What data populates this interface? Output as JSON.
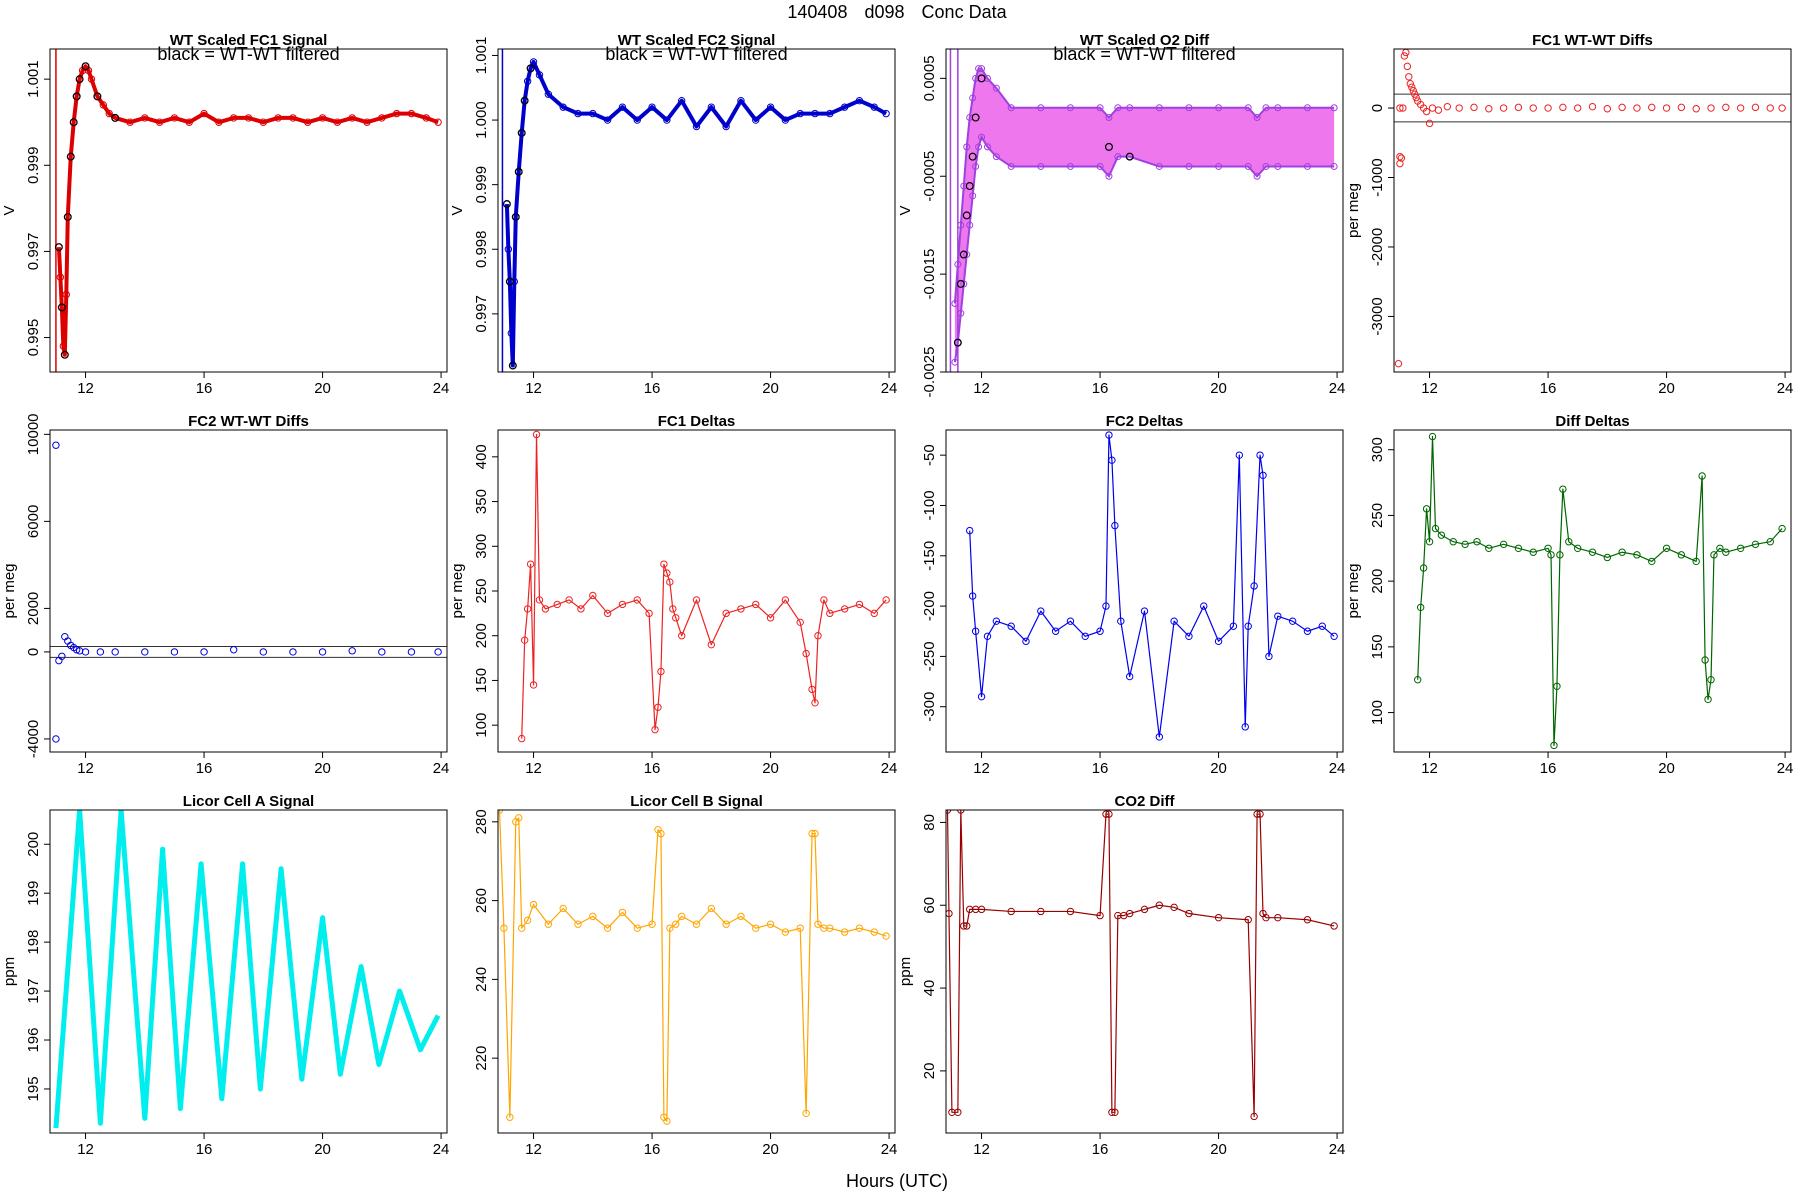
{
  "figure": {
    "title_parts": [
      "140408",
      "d098",
      "Conc Data"
    ],
    "xlabel": "Hours (UTC)"
  },
  "chart_data": [
    {
      "type": "scatter",
      "title": "WT Scaled FC1 Signal",
      "annotation": "black = WT-WT filtered",
      "ylabel": "V",
      "color": "#dd0000",
      "highlight_color": "#000000",
      "band": false,
      "xlim": [
        10.8,
        24.2
      ],
      "ylim": [
        0.9942,
        1.0017
      ],
      "xticks": [
        12,
        16,
        20,
        24
      ],
      "yticks": [
        0.995,
        0.997,
        0.999,
        1.001
      ],
      "ytick_labels": [
        "0.995",
        "0.997",
        "0.999",
        "1.001"
      ],
      "vlines": [
        11.0
      ],
      "x": [
        11.1,
        11.15,
        11.2,
        11.25,
        11.3,
        11.35,
        11.4,
        11.5,
        11.6,
        11.7,
        11.8,
        11.9,
        12.0,
        12.1,
        12.2,
        12.4,
        12.6,
        12.8,
        13.0,
        13.5,
        14.0,
        14.5,
        15.0,
        15.5,
        16.0,
        16.5,
        17.0,
        17.5,
        18.0,
        18.5,
        19.0,
        19.5,
        20.0,
        20.5,
        21.0,
        21.5,
        22.0,
        22.5,
        23.0,
        23.5,
        23.9
      ],
      "y": [
        0.9971,
        0.9964,
        0.9957,
        0.9948,
        0.9946,
        0.996,
        0.9978,
        0.9992,
        1.0,
        1.0006,
        1.001,
        1.0012,
        1.0013,
        1.0012,
        1.001,
        1.0006,
        1.0004,
        1.0002,
        1.0001,
        1.0,
        1.0001,
        1.0,
        1.0001,
        1.0,
        1.0002,
        1.0,
        1.0001,
        1.0001,
        1.0,
        1.0001,
        1.0001,
        1.0,
        1.0001,
        1.0,
        1.0001,
        1.0,
        1.0001,
        1.0002,
        1.0002,
        1.0001,
        1.0
      ],
      "highlight_x": [
        11.1,
        11.2,
        11.3,
        11.4,
        11.5,
        11.6,
        11.7,
        11.8,
        12.0,
        12.4,
        13.0
      ],
      "highlight_y": [
        0.9971,
        0.9957,
        0.9946,
        0.9978,
        0.9992,
        1.0,
        1.0006,
        1.001,
        1.0013,
        1.0006,
        1.0001
      ]
    },
    {
      "type": "scatter",
      "title": "WT Scaled FC2 Signal",
      "annotation": "black = WT-WT filtered",
      "ylabel": "V",
      "color": "#0000cc",
      "highlight_color": "#000000",
      "band": false,
      "xlim": [
        10.8,
        24.2
      ],
      "ylim": [
        0.9961,
        1.0011
      ],
      "xticks": [
        12,
        16,
        20,
        24
      ],
      "yticks": [
        0.997,
        0.998,
        0.999,
        1.0,
        1.001
      ],
      "ytick_labels": [
        "0.997",
        "0.998",
        "0.999",
        "1.000",
        "1.001"
      ],
      "vlines": [
        10.95
      ],
      "x": [
        11.1,
        11.15,
        11.2,
        11.25,
        11.3,
        11.35,
        11.4,
        11.5,
        11.6,
        11.7,
        11.8,
        11.9,
        12.0,
        12.2,
        12.5,
        13.0,
        13.5,
        14.0,
        14.5,
        15.0,
        15.5,
        16.0,
        16.5,
        17.0,
        17.5,
        18.0,
        18.5,
        19.0,
        19.5,
        20.0,
        20.5,
        21.0,
        21.5,
        22.0,
        22.5,
        23.0,
        23.5,
        23.9
      ],
      "y": [
        0.9987,
        0.998,
        0.9975,
        0.9967,
        0.9962,
        0.9975,
        0.9985,
        0.9992,
        0.9998,
        1.0003,
        1.0006,
        1.0008,
        1.0009,
        1.0007,
        1.0004,
        1.0002,
        1.0001,
        1.0001,
        1.0,
        1.0002,
        1.0,
        1.0002,
        1.0,
        1.0003,
        0.9999,
        1.0002,
        0.9999,
        1.0003,
        1.0,
        1.0002,
        1.0,
        1.0001,
        1.0001,
        1.0001,
        1.0002,
        1.0003,
        1.0002,
        1.0001
      ],
      "highlight_x": [
        11.1,
        11.2,
        11.3,
        11.4,
        11.5,
        11.6,
        11.7,
        11.9
      ],
      "highlight_y": [
        0.9987,
        0.9975,
        0.9962,
        0.9985,
        0.9992,
        0.9998,
        1.0003,
        1.0008
      ]
    },
    {
      "type": "scatter",
      "title": "WT Scaled O2 Diff",
      "annotation": "black = WT-WT filtered",
      "ylabel": "V",
      "color": "#a040e0",
      "band_color": "#ee77ee",
      "highlight_color": "#000000",
      "band": true,
      "xlim": [
        10.8,
        24.2
      ],
      "ylim": [
        -0.0025,
        0.0008
      ],
      "xticks": [
        12,
        16,
        20,
        24
      ],
      "yticks": [
        -0.0025,
        -0.0015,
        -0.0005,
        0.0005
      ],
      "ytick_labels": [
        "-0.0025",
        "-0.0015",
        "-0.0005",
        "0.0005"
      ],
      "vlines": [
        10.95,
        11.2
      ],
      "x": [
        11.1,
        11.2,
        11.3,
        11.4,
        11.5,
        11.6,
        11.7,
        11.8,
        11.9,
        12.0,
        12.2,
        12.5,
        13.0,
        14.0,
        15.0,
        16.0,
        16.3,
        16.6,
        17.0,
        18.0,
        19.0,
        20.0,
        21.0,
        21.3,
        21.6,
        22.0,
        23.0,
        23.9
      ],
      "y_upper": [
        -0.0018,
        -0.0014,
        -0.001,
        -0.0006,
        -0.0002,
        0.0001,
        0.0003,
        0.0005,
        0.0006,
        0.0006,
        0.0005,
        0.0004,
        0.0002,
        0.0002,
        0.0002,
        0.0002,
        0.0001,
        0.0002,
        0.0002,
        0.0002,
        0.0002,
        0.0002,
        0.0002,
        0.0001,
        0.0002,
        0.0002,
        0.0002,
        0.0002
      ],
      "y_lower": [
        -0.0024,
        -0.0022,
        -0.0019,
        -0.0016,
        -0.0013,
        -0.001,
        -0.0007,
        -0.0004,
        -0.0002,
        -0.0001,
        -0.0002,
        -0.0003,
        -0.0004,
        -0.0004,
        -0.0004,
        -0.0004,
        -0.0005,
        -0.0003,
        -0.0003,
        -0.0004,
        -0.0004,
        -0.0004,
        -0.0004,
        -0.0005,
        -0.0004,
        -0.0004,
        -0.0004,
        -0.0004
      ],
      "highlight_x": [
        11.2,
        11.3,
        11.4,
        11.5,
        11.6,
        11.7,
        11.8,
        12.0,
        16.3,
        17.0
      ],
      "highlight_y": [
        -0.0022,
        -0.0016,
        -0.0013,
        -0.0009,
        -0.0006,
        -0.0003,
        0.0001,
        0.0005,
        -0.0002,
        -0.0003
      ]
    },
    {
      "type": "scatter",
      "title": "FC1 WT-WT Diffs",
      "ylabel": "per meg",
      "color": "#ee2222",
      "xlim": [
        10.8,
        24.2
      ],
      "ylim": [
        -3800,
        850
      ],
      "xticks": [
        12,
        16,
        20,
        24
      ],
      "yticks": [
        -3000,
        -2000,
        -1000,
        0
      ],
      "ytick_labels": [
        "-3000",
        "-2000",
        "-1000",
        "0"
      ],
      "hlines": [
        200,
        -200
      ],
      "x": [
        10.95,
        11.0,
        11.1,
        11.15,
        11.2,
        11.25,
        11.3,
        11.35,
        11.4,
        11.45,
        11.5,
        11.55,
        11.6,
        11.7,
        11.8,
        11.9,
        12.0,
        12.1,
        12.3,
        12.6,
        13.0,
        13.5,
        14.0,
        14.5,
        15.0,
        15.5,
        16.0,
        16.5,
        17.0,
        17.5,
        18.0,
        18.5,
        19.0,
        19.5,
        20.0,
        20.5,
        21.0,
        21.5,
        22.0,
        22.5,
        23.0,
        23.5,
        23.9
      ],
      "y": [
        -3680,
        -700,
        0,
        750,
        800,
        600,
        450,
        350,
        300,
        250,
        200,
        150,
        100,
        50,
        0,
        -50,
        -220,
        0,
        -30,
        20,
        0,
        10,
        -10,
        0,
        10,
        0,
        0,
        10,
        0,
        20,
        -10,
        10,
        0,
        10,
        0,
        10,
        -10,
        0,
        10,
        0,
        10,
        0,
        0
      ],
      "extra_x": [
        11.0,
        11.05,
        11.0
      ],
      "extra_y": [
        -800,
        -720,
        0
      ]
    },
    {
      "type": "scatter",
      "title": "FC2 WT-WT Diffs",
      "ylabel": "per meg",
      "color": "#0000dd",
      "xlim": [
        10.8,
        24.2
      ],
      "ylim": [
        -4600,
        10200
      ],
      "xticks": [
        12,
        16,
        20,
        24
      ],
      "yticks": [
        -4000,
        0,
        2000,
        6000,
        10000
      ],
      "ytick_labels": [
        "-4000",
        "0",
        "2000",
        "6000",
        "10000"
      ],
      "hlines": [
        250,
        -250
      ],
      "x": [
        11.0,
        11.0,
        11.1,
        11.2,
        11.3,
        11.4,
        11.5,
        11.6,
        11.7,
        11.8,
        12.0,
        12.5,
        13.0,
        14.0,
        15.0,
        16.0,
        17.0,
        18.0,
        19.0,
        20.0,
        21.0,
        22.0,
        23.0,
        23.9
      ],
      "y": [
        9500,
        -4000,
        -400,
        -200,
        700,
        500,
        300,
        200,
        100,
        50,
        0,
        0,
        0,
        0,
        0,
        0,
        100,
        0,
        0,
        0,
        50,
        0,
        0,
        0
      ]
    },
    {
      "type": "line",
      "title": "FC1 Deltas",
      "ylabel": "per meg",
      "color": "#ee2222",
      "xlim": [
        10.8,
        24.2
      ],
      "ylim": [
        70,
        430
      ],
      "xticks": [
        12,
        16,
        20,
        24
      ],
      "yticks": [
        100,
        150,
        200,
        250,
        300,
        350,
        400
      ],
      "ytick_labels": [
        "100",
        "150",
        "200",
        "250",
        "300",
        "350",
        "400"
      ],
      "x": [
        11.6,
        11.7,
        11.8,
        11.9,
        12.0,
        12.1,
        12.2,
        12.4,
        12.8,
        13.2,
        13.6,
        14.0,
        14.5,
        15.0,
        15.5,
        15.9,
        16.1,
        16.2,
        16.3,
        16.4,
        16.5,
        16.6,
        16.7,
        16.8,
        17.0,
        17.5,
        18.0,
        18.5,
        19.0,
        19.5,
        20.0,
        20.5,
        21.0,
        21.2,
        21.4,
        21.5,
        21.6,
        21.8,
        22.0,
        22.5,
        23.0,
        23.5,
        23.9
      ],
      "y": [
        85,
        195,
        230,
        280,
        145,
        425,
        240,
        230,
        235,
        240,
        230,
        245,
        225,
        235,
        240,
        225,
        95,
        120,
        160,
        280,
        270,
        260,
        230,
        220,
        200,
        240,
        190,
        225,
        230,
        235,
        220,
        240,
        215,
        180,
        140,
        125,
        200,
        240,
        225,
        230,
        235,
        225,
        240
      ]
    },
    {
      "type": "line",
      "title": "FC2 Deltas",
      "ylabel": "",
      "color": "#0000ee",
      "xlim": [
        10.8,
        24.2
      ],
      "ylim": [
        -345,
        -25
      ],
      "xticks": [
        12,
        16,
        20,
        24
      ],
      "yticks": [
        -300,
        -250,
        -200,
        -150,
        -100,
        -50
      ],
      "ytick_labels": [
        "-300",
        "-250",
        "-200",
        "-150",
        "-100",
        "-50"
      ],
      "x": [
        11.6,
        11.7,
        11.8,
        12.0,
        12.2,
        12.5,
        13.0,
        13.5,
        14.0,
        14.5,
        15.0,
        15.5,
        16.0,
        16.2,
        16.3,
        16.4,
        16.5,
        16.7,
        17.0,
        17.5,
        18.0,
        18.5,
        19.0,
        19.5,
        20.0,
        20.5,
        20.7,
        20.9,
        21.0,
        21.2,
        21.4,
        21.5,
        21.7,
        22.0,
        22.5,
        23.0,
        23.5,
        23.9
      ],
      "y": [
        -125,
        -190,
        -225,
        -290,
        -230,
        -215,
        -220,
        -235,
        -205,
        -225,
        -215,
        -230,
        -225,
        -200,
        -30,
        -55,
        -120,
        -215,
        -270,
        -205,
        -330,
        -215,
        -230,
        -200,
        -235,
        -220,
        -50,
        -320,
        -220,
        -180,
        -50,
        -70,
        -250,
        -210,
        -215,
        -225,
        -220,
        -230
      ]
    },
    {
      "type": "line",
      "title": "Diff Deltas",
      "ylabel": "per meg",
      "color": "#006600",
      "xlim": [
        10.8,
        24.2
      ],
      "ylim": [
        70,
        315
      ],
      "xticks": [
        12,
        16,
        20,
        24
      ],
      "yticks": [
        100,
        150,
        200,
        250,
        300
      ],
      "ytick_labels": [
        "100",
        "150",
        "200",
        "250",
        "300"
      ],
      "x": [
        11.6,
        11.7,
        11.8,
        11.9,
        12.0,
        12.1,
        12.2,
        12.4,
        12.8,
        13.2,
        13.6,
        14.0,
        14.5,
        15.0,
        15.5,
        16.0,
        16.1,
        16.2,
        16.3,
        16.4,
        16.5,
        16.7,
        17.0,
        17.5,
        18.0,
        18.5,
        19.0,
        19.5,
        20.0,
        20.5,
        21.0,
        21.2,
        21.3,
        21.4,
        21.5,
        21.6,
        21.8,
        22.0,
        22.5,
        23.0,
        23.5,
        23.9
      ],
      "y": [
        125,
        180,
        210,
        255,
        230,
        310,
        240,
        235,
        230,
        228,
        230,
        225,
        228,
        225,
        222,
        225,
        220,
        75,
        120,
        220,
        270,
        230,
        225,
        222,
        218,
        222,
        220,
        215,
        225,
        220,
        215,
        280,
        140,
        110,
        125,
        220,
        225,
        222,
        225,
        228,
        230,
        240
      ]
    },
    {
      "type": "line",
      "title": "Licor Cell A Signal",
      "ylabel": "ppm",
      "color": "#00eeee",
      "xlim": [
        10.8,
        24.2
      ],
      "ylim": [
        194.1,
        200.7
      ],
      "xticks": [
        12,
        16,
        20,
        24
      ],
      "yticks": [
        195,
        196,
        197,
        198,
        199,
        200
      ],
      "ytick_labels": [
        "195",
        "196",
        "197",
        "198",
        "199",
        "200"
      ],
      "x": [
        11.0,
        11.8,
        12.5,
        13.2,
        14.0,
        14.6,
        15.2,
        15.9,
        16.6,
        17.3,
        17.9,
        18.6,
        19.3,
        20.0,
        20.6,
        21.3,
        21.9,
        22.6,
        23.3,
        23.9
      ],
      "y": [
        194.2,
        200.7,
        194.3,
        200.7,
        194.4,
        199.9,
        194.6,
        199.6,
        194.8,
        199.6,
        195.0,
        199.5,
        195.2,
        198.5,
        195.3,
        197.5,
        195.5,
        197.0,
        195.8,
        196.5
      ]
    },
    {
      "type": "line",
      "title": "Licor Cell B Signal",
      "ylabel": "",
      "color": "#ffa500",
      "xlim": [
        10.8,
        24.2
      ],
      "ylim": [
        201,
        283
      ],
      "xticks": [
        12,
        16,
        20,
        24
      ],
      "yticks": [
        220,
        240,
        260,
        280
      ],
      "ytick_labels": [
        "220",
        "240",
        "260",
        "280"
      ],
      "x": [
        10.85,
        11.0,
        11.2,
        11.4,
        11.5,
        11.6,
        11.8,
        12.0,
        12.5,
        13.0,
        13.5,
        14.0,
        14.5,
        15.0,
        15.5,
        16.0,
        16.2,
        16.3,
        16.4,
        16.5,
        16.6,
        16.8,
        17.0,
        17.5,
        18.0,
        18.5,
        19.0,
        19.5,
        20.0,
        20.5,
        21.0,
        21.2,
        21.4,
        21.5,
        21.6,
        21.8,
        22.0,
        22.5,
        23.0,
        23.5,
        23.9
      ],
      "y": [
        283,
        253,
        205,
        280,
        281,
        253,
        255,
        259,
        254,
        258,
        254,
        256,
        253,
        257,
        253,
        254,
        278,
        277,
        205,
        204,
        253,
        254,
        256,
        254,
        258,
        254,
        256,
        253,
        254,
        252,
        253,
        206,
        277,
        277,
        254,
        253,
        253,
        252,
        253,
        252,
        251
      ]
    },
    {
      "type": "line",
      "title": "CO2 Diff",
      "ylabel": "ppm",
      "color": "#990000",
      "xlim": [
        10.8,
        24.2
      ],
      "ylim": [
        5,
        83
      ],
      "xticks": [
        12,
        16,
        20,
        24
      ],
      "yticks": [
        20,
        40,
        60,
        80
      ],
      "ytick_labels": [
        "20",
        "40",
        "60",
        "80"
      ],
      "x": [
        10.85,
        10.9,
        11.0,
        11.2,
        11.3,
        11.4,
        11.5,
        11.6,
        11.8,
        12.0,
        13.0,
        14.0,
        15.0,
        16.0,
        16.2,
        16.3,
        16.4,
        16.5,
        16.6,
        16.8,
        17.0,
        17.5,
        18.0,
        18.5,
        19.0,
        20.0,
        21.0,
        21.2,
        21.3,
        21.4,
        21.5,
        21.6,
        22.0,
        23.0,
        23.9
      ],
      "y": [
        83,
        58,
        10,
        10,
        83,
        55,
        55,
        59,
        59,
        59,
        58.5,
        58.5,
        58.5,
        57.5,
        82,
        82,
        10,
        10,
        57.5,
        57.5,
        58,
        59,
        60,
        59.5,
        58,
        57,
        56.5,
        9,
        82,
        82,
        58,
        57,
        57,
        56.5,
        55
      ]
    }
  ]
}
